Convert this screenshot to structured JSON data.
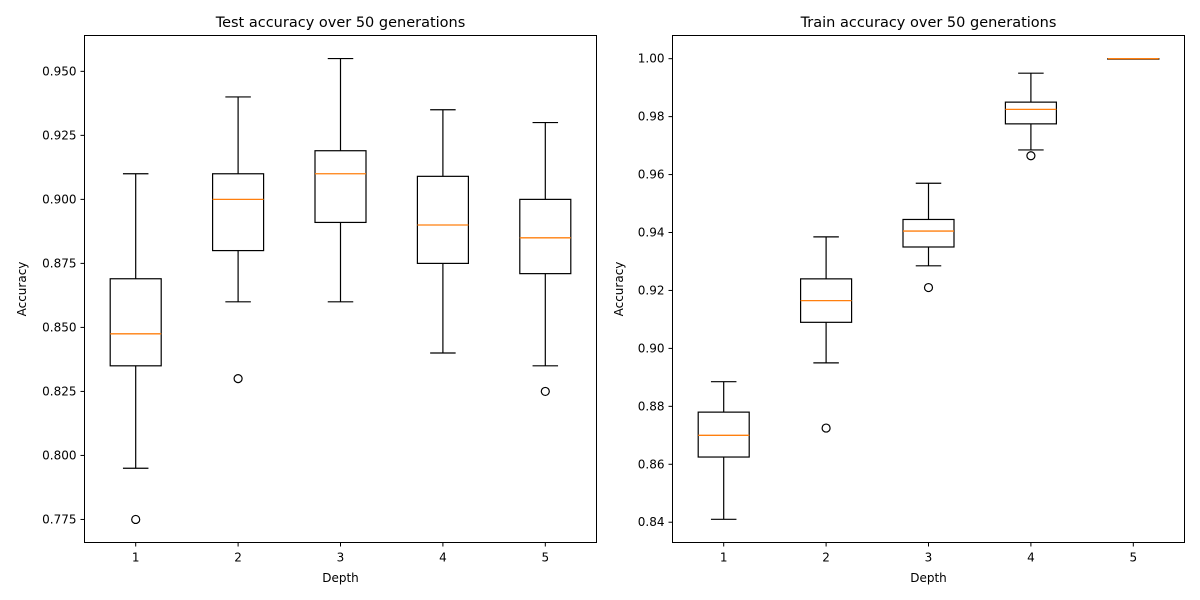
{
  "chart_data": [
    {
      "type": "box",
      "title": "Test accuracy over 50 generations",
      "xlabel": "Depth",
      "ylabel": "Accuracy",
      "categories": [
        "1",
        "2",
        "3",
        "4",
        "5"
      ],
      "ylim": [
        0.766,
        0.964
      ],
      "yticks": [
        0.775,
        0.8,
        0.825,
        0.85,
        0.875,
        0.9,
        0.925,
        0.95
      ],
      "ytick_labels": [
        "0.775",
        "0.800",
        "0.825",
        "0.850",
        "0.875",
        "0.900",
        "0.925",
        "0.950"
      ],
      "boxes": [
        {
          "category": "1",
          "whisker_low": 0.795,
          "q1": 0.835,
          "median": 0.8475,
          "q3": 0.869,
          "whisker_high": 0.91,
          "fliers": [
            0.775
          ]
        },
        {
          "category": "2",
          "whisker_low": 0.86,
          "q1": 0.88,
          "median": 0.9,
          "q3": 0.91,
          "whisker_high": 0.94,
          "fliers": [
            0.83
          ]
        },
        {
          "category": "3",
          "whisker_low": 0.86,
          "q1": 0.891,
          "median": 0.91,
          "q3": 0.919,
          "whisker_high": 0.955,
          "fliers": []
        },
        {
          "category": "4",
          "whisker_low": 0.84,
          "q1": 0.875,
          "median": 0.89,
          "q3": 0.909,
          "whisker_high": 0.935,
          "fliers": []
        },
        {
          "category": "5",
          "whisker_low": 0.835,
          "q1": 0.871,
          "median": 0.885,
          "q3": 0.9,
          "whisker_high": 0.93,
          "fliers": [
            0.825
          ]
        }
      ]
    },
    {
      "type": "box",
      "title": "Train accuracy over 50 generations",
      "xlabel": "Depth",
      "ylabel": "Accuracy",
      "categories": [
        "1",
        "2",
        "3",
        "4",
        "5"
      ],
      "ylim": [
        0.833,
        1.008
      ],
      "yticks": [
        0.84,
        0.86,
        0.88,
        0.9,
        0.92,
        0.94,
        0.96,
        0.98,
        1.0
      ],
      "ytick_labels": [
        "0.84",
        "0.86",
        "0.88",
        "0.90",
        "0.92",
        "0.94",
        "0.96",
        "0.98",
        "1.00"
      ],
      "boxes": [
        {
          "category": "1",
          "whisker_low": 0.841,
          "q1": 0.8625,
          "median": 0.87,
          "q3": 0.878,
          "whisker_high": 0.8885,
          "fliers": []
        },
        {
          "category": "2",
          "whisker_low": 0.895,
          "q1": 0.909,
          "median": 0.9165,
          "q3": 0.924,
          "whisker_high": 0.9385,
          "fliers": [
            0.8725
          ]
        },
        {
          "category": "3",
          "whisker_low": 0.9285,
          "q1": 0.935,
          "median": 0.9405,
          "q3": 0.9445,
          "whisker_high": 0.957,
          "fliers": [
            0.921
          ]
        },
        {
          "category": "4",
          "whisker_low": 0.9685,
          "q1": 0.9775,
          "median": 0.9825,
          "q3": 0.985,
          "whisker_high": 0.995,
          "fliers": [
            0.9665
          ]
        },
        {
          "category": "5",
          "whisker_low": 1.0,
          "q1": 1.0,
          "median": 1.0,
          "q3": 1.0,
          "whisker_high": 1.0,
          "fliers": []
        }
      ]
    }
  ]
}
